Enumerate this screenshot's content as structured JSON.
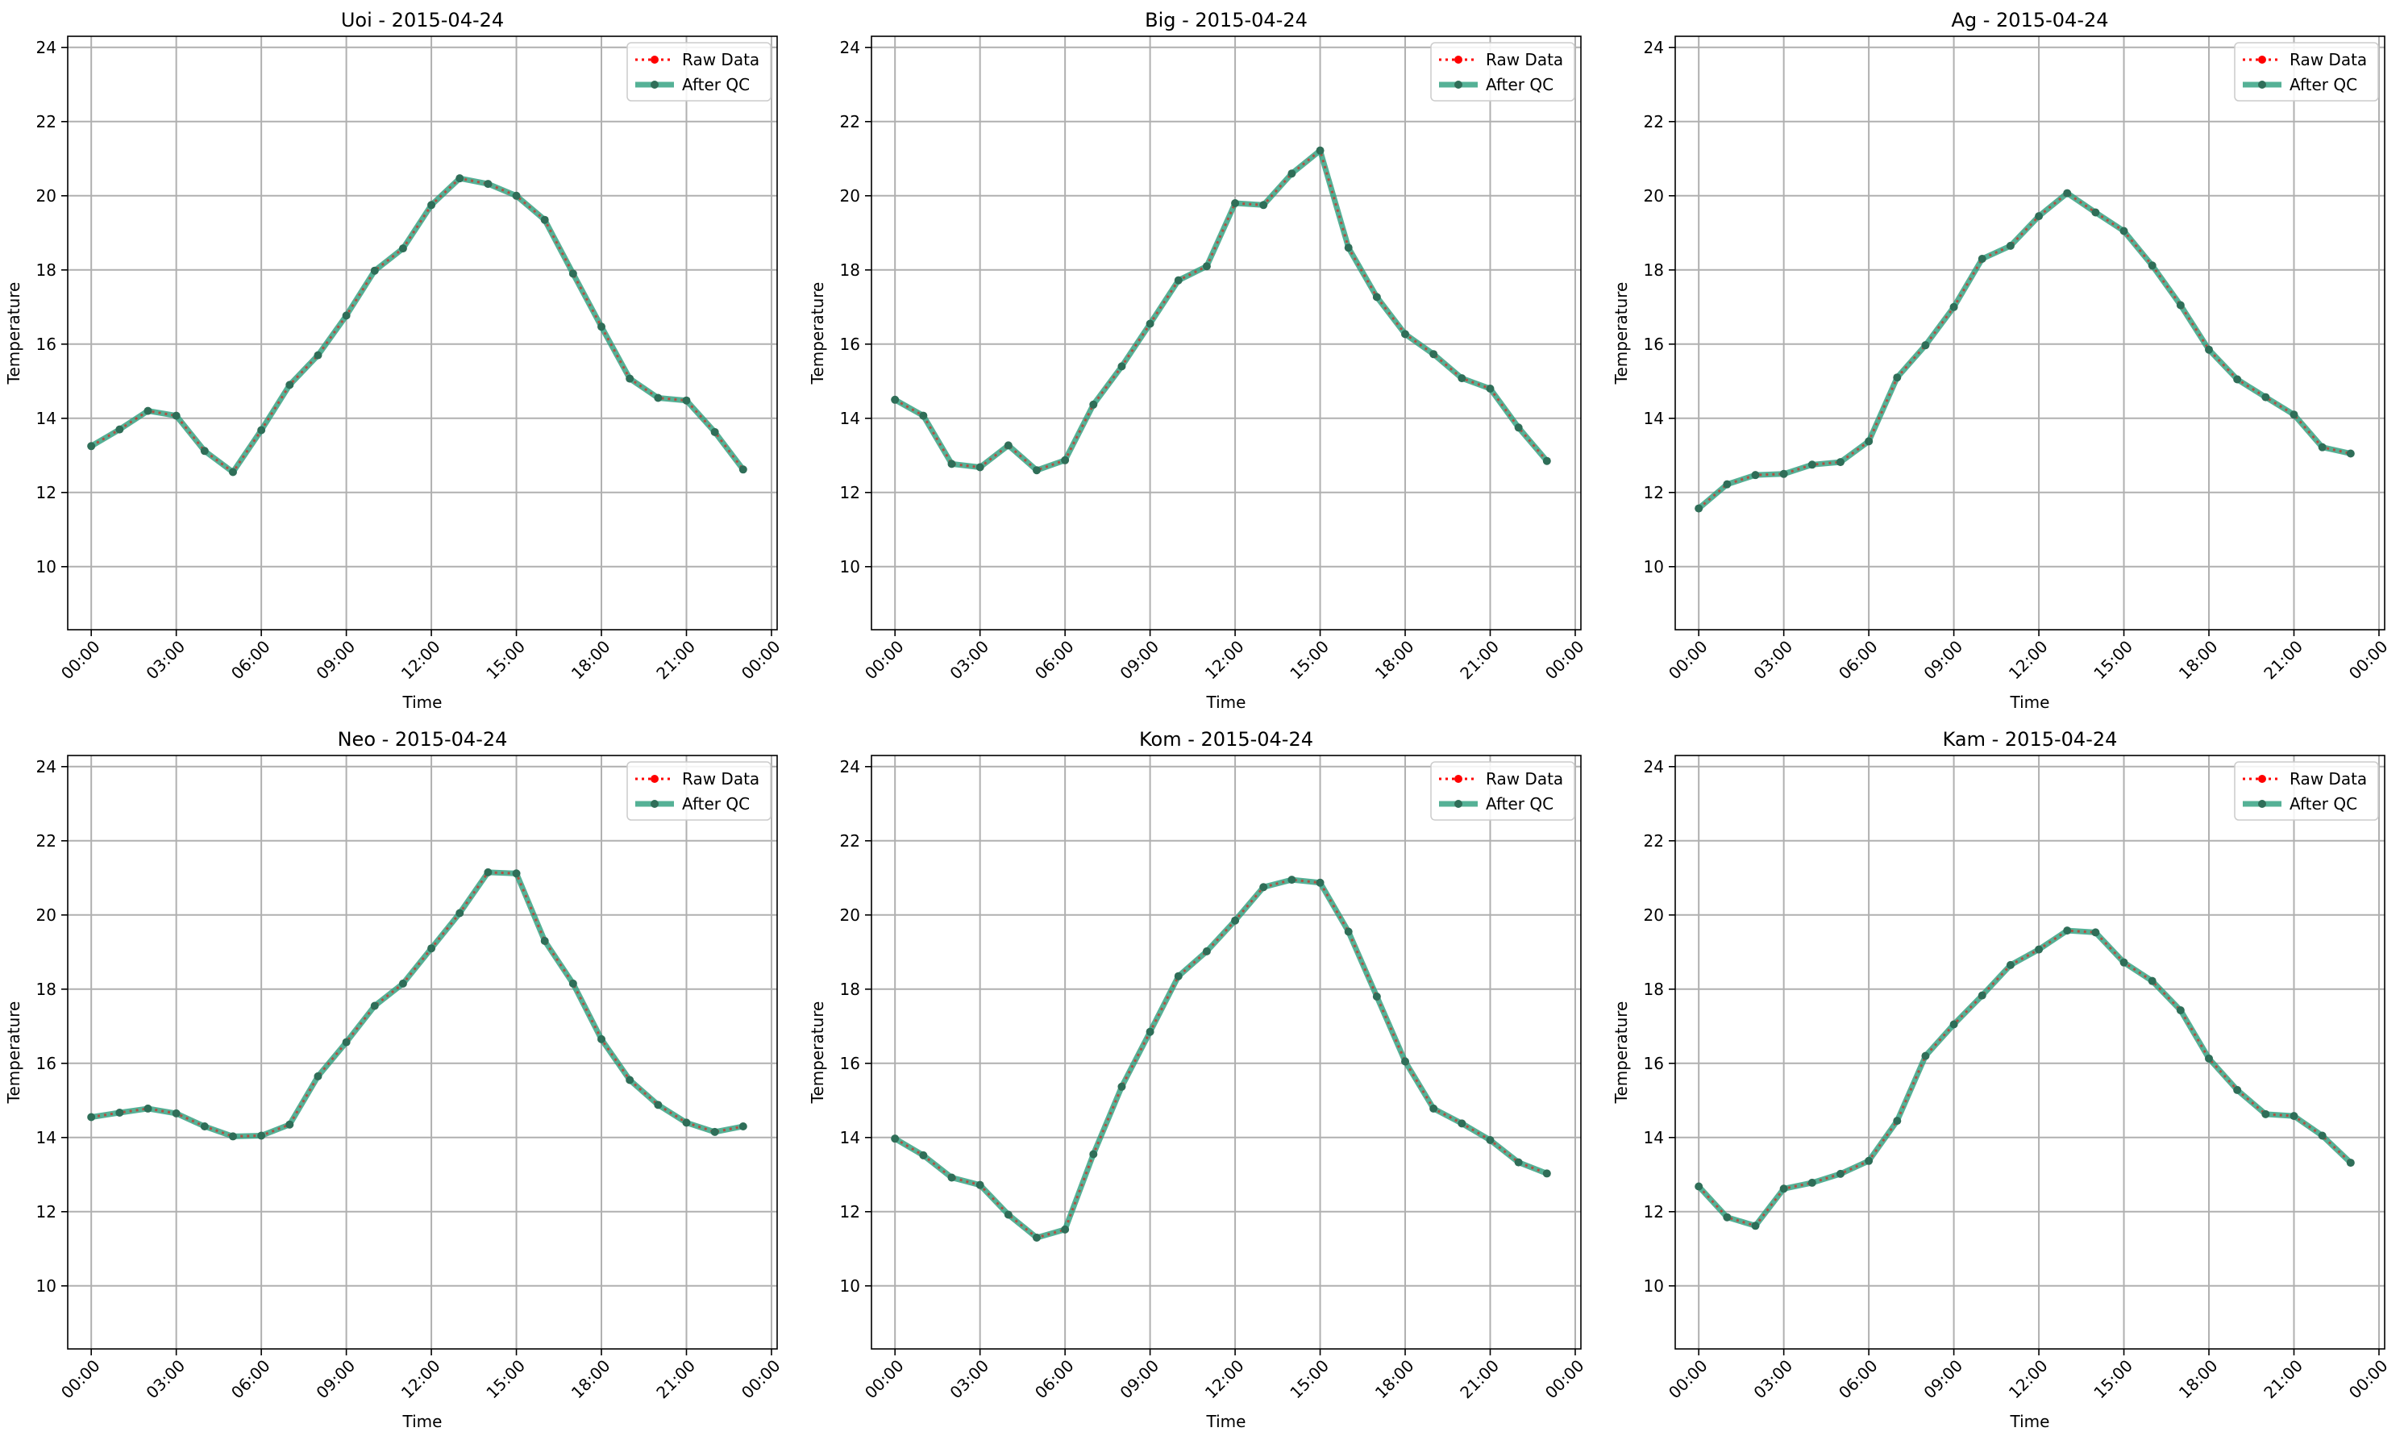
{
  "chart_data": [
    {
      "type": "line",
      "title": "Uoi - 2015-04-24",
      "xlabel": "Time",
      "ylabel": "Temperature",
      "x": [
        "00:00",
        "01:00",
        "02:00",
        "03:00",
        "04:00",
        "05:00",
        "06:00",
        "07:00",
        "08:00",
        "09:00",
        "10:00",
        "11:00",
        "12:00",
        "13:00",
        "14:00",
        "15:00",
        "16:00",
        "17:00",
        "18:00",
        "19:00",
        "20:00",
        "21:00",
        "22:00",
        "23:00"
      ],
      "xticks": [
        "00:00",
        "03:00",
        "06:00",
        "09:00",
        "12:00",
        "15:00",
        "18:00",
        "21:00",
        "00:00"
      ],
      "yticks": [
        10,
        12,
        14,
        16,
        18,
        20,
        22,
        24
      ],
      "ylim": [
        8.3,
        24.3
      ],
      "grid": true,
      "legend": "top-right",
      "series": [
        {
          "name": "Raw Data",
          "color": "#ff0000",
          "values": [
            13.25,
            13.7,
            14.2,
            14.07,
            13.12,
            12.55,
            13.68,
            14.9,
            15.7,
            16.77,
            17.98,
            18.58,
            19.75,
            20.47,
            20.32,
            20.0,
            19.35,
            17.9,
            16.47,
            15.07,
            14.55,
            14.48,
            13.63,
            12.62
          ]
        },
        {
          "name": "After QC",
          "color": "#2a9d7c",
          "values": [
            13.25,
            13.7,
            14.2,
            14.07,
            13.12,
            12.55,
            13.68,
            14.9,
            15.7,
            16.77,
            17.98,
            18.58,
            19.75,
            20.47,
            20.32,
            20.0,
            19.35,
            17.9,
            16.47,
            15.07,
            14.55,
            14.48,
            13.63,
            12.62
          ]
        }
      ]
    },
    {
      "type": "line",
      "title": "Big - 2015-04-24",
      "xlabel": "Time",
      "ylabel": "Temperature",
      "x": [
        "00:00",
        "01:00",
        "02:00",
        "03:00",
        "04:00",
        "05:00",
        "06:00",
        "07:00",
        "08:00",
        "09:00",
        "10:00",
        "11:00",
        "12:00",
        "13:00",
        "14:00",
        "15:00",
        "16:00",
        "17:00",
        "18:00",
        "19:00",
        "20:00",
        "21:00",
        "22:00",
        "23:00"
      ],
      "xticks": [
        "00:00",
        "03:00",
        "06:00",
        "09:00",
        "12:00",
        "15:00",
        "18:00",
        "21:00",
        "00:00"
      ],
      "yticks": [
        10,
        12,
        14,
        16,
        18,
        20,
        22,
        24
      ],
      "ylim": [
        8.3,
        24.3
      ],
      "grid": true,
      "legend": "top-right",
      "series": [
        {
          "name": "Raw Data",
          "color": "#ff0000",
          "values": [
            14.5,
            14.07,
            12.77,
            12.68,
            13.27,
            12.6,
            12.87,
            14.37,
            15.4,
            16.55,
            17.72,
            18.1,
            19.8,
            19.75,
            20.6,
            21.22,
            18.6,
            17.27,
            16.27,
            15.73,
            15.08,
            14.8,
            13.75,
            12.85
          ]
        },
        {
          "name": "After QC",
          "color": "#2a9d7c",
          "values": [
            14.5,
            14.07,
            12.77,
            12.68,
            13.27,
            12.6,
            12.87,
            14.37,
            15.4,
            16.55,
            17.72,
            18.1,
            19.8,
            19.75,
            20.6,
            21.22,
            18.6,
            17.27,
            16.27,
            15.73,
            15.08,
            14.8,
            13.75,
            12.85
          ]
        }
      ]
    },
    {
      "type": "line",
      "title": "Ag - 2015-04-24",
      "xlabel": "Time",
      "ylabel": "Temperature",
      "x": [
        "00:00",
        "01:00",
        "02:00",
        "03:00",
        "04:00",
        "05:00",
        "06:00",
        "07:00",
        "08:00",
        "09:00",
        "10:00",
        "11:00",
        "12:00",
        "13:00",
        "14:00",
        "15:00",
        "16:00",
        "17:00",
        "18:00",
        "19:00",
        "20:00",
        "21:00",
        "22:00",
        "23:00"
      ],
      "xticks": [
        "00:00",
        "03:00",
        "06:00",
        "09:00",
        "12:00",
        "15:00",
        "18:00",
        "21:00",
        "00:00"
      ],
      "yticks": [
        10,
        12,
        14,
        16,
        18,
        20,
        22,
        24
      ],
      "ylim": [
        8.3,
        24.3
      ],
      "grid": true,
      "legend": "top-right",
      "series": [
        {
          "name": "Raw Data",
          "color": "#ff0000",
          "values": [
            11.57,
            12.22,
            12.47,
            12.5,
            12.75,
            12.82,
            13.38,
            15.1,
            15.97,
            17.0,
            18.3,
            18.65,
            19.45,
            20.07,
            19.55,
            19.05,
            18.12,
            17.05,
            15.85,
            15.05,
            14.57,
            14.1,
            13.22,
            13.05
          ]
        },
        {
          "name": "After QC",
          "color": "#2a9d7c",
          "values": [
            11.57,
            12.22,
            12.47,
            12.5,
            12.75,
            12.82,
            13.38,
            15.1,
            15.97,
            17.0,
            18.3,
            18.65,
            19.45,
            20.07,
            19.55,
            19.05,
            18.12,
            17.05,
            15.85,
            15.05,
            14.57,
            14.1,
            13.22,
            13.05
          ]
        }
      ]
    },
    {
      "type": "line",
      "title": "Neo - 2015-04-24",
      "xlabel": "Time",
      "ylabel": "Temperature",
      "x": [
        "00:00",
        "01:00",
        "02:00",
        "03:00",
        "04:00",
        "05:00",
        "06:00",
        "07:00",
        "08:00",
        "09:00",
        "10:00",
        "11:00",
        "12:00",
        "13:00",
        "14:00",
        "15:00",
        "16:00",
        "17:00",
        "18:00",
        "19:00",
        "20:00",
        "21:00",
        "22:00",
        "23:00"
      ],
      "xticks": [
        "00:00",
        "03:00",
        "06:00",
        "09:00",
        "12:00",
        "15:00",
        "18:00",
        "21:00",
        "00:00"
      ],
      "yticks": [
        10,
        12,
        14,
        16,
        18,
        20,
        22,
        24
      ],
      "ylim": [
        8.3,
        24.3
      ],
      "grid": true,
      "legend": "top-right",
      "series": [
        {
          "name": "Raw Data",
          "color": "#ff0000",
          "values": [
            14.55,
            14.67,
            14.78,
            14.65,
            14.3,
            14.03,
            14.05,
            14.35,
            15.65,
            16.57,
            17.55,
            18.15,
            19.1,
            20.05,
            21.15,
            21.12,
            19.3,
            18.15,
            16.65,
            15.55,
            14.88,
            14.4,
            14.15,
            14.3
          ]
        },
        {
          "name": "After QC",
          "color": "#2a9d7c",
          "values": [
            14.55,
            14.67,
            14.78,
            14.65,
            14.3,
            14.03,
            14.05,
            14.35,
            15.65,
            16.57,
            17.55,
            18.15,
            19.1,
            20.05,
            21.15,
            21.12,
            19.3,
            18.15,
            16.65,
            15.55,
            14.88,
            14.4,
            14.15,
            14.3
          ]
        }
      ]
    },
    {
      "type": "line",
      "title": "Kom - 2015-04-24",
      "xlabel": "Time",
      "ylabel": "Temperature",
      "x": [
        "00:00",
        "01:00",
        "02:00",
        "03:00",
        "04:00",
        "05:00",
        "06:00",
        "07:00",
        "08:00",
        "09:00",
        "10:00",
        "11:00",
        "12:00",
        "13:00",
        "14:00",
        "15:00",
        "16:00",
        "17:00",
        "18:00",
        "19:00",
        "20:00",
        "21:00",
        "22:00",
        "23:00"
      ],
      "xticks": [
        "00:00",
        "03:00",
        "06:00",
        "09:00",
        "12:00",
        "15:00",
        "18:00",
        "21:00",
        "00:00"
      ],
      "yticks": [
        10,
        12,
        14,
        16,
        18,
        20,
        22,
        24
      ],
      "ylim": [
        8.3,
        24.3
      ],
      "grid": true,
      "legend": "top-right",
      "series": [
        {
          "name": "Raw Data",
          "color": "#ff0000",
          "values": [
            13.97,
            13.52,
            12.92,
            12.72,
            11.92,
            11.3,
            11.52,
            13.55,
            15.37,
            16.85,
            18.35,
            19.02,
            19.85,
            20.75,
            20.95,
            20.87,
            19.55,
            17.8,
            16.05,
            14.78,
            14.38,
            13.93,
            13.33,
            13.03
          ]
        },
        {
          "name": "After QC",
          "color": "#2a9d7c",
          "values": [
            13.97,
            13.52,
            12.92,
            12.72,
            11.92,
            11.3,
            11.52,
            13.55,
            15.37,
            16.85,
            18.35,
            19.02,
            19.85,
            20.75,
            20.95,
            20.87,
            19.55,
            17.8,
            16.05,
            14.78,
            14.38,
            13.93,
            13.33,
            13.03
          ]
        }
      ]
    },
    {
      "type": "line",
      "title": "Kam - 2015-04-24",
      "xlabel": "Time",
      "ylabel": "Temperature",
      "x": [
        "00:00",
        "01:00",
        "02:00",
        "03:00",
        "04:00",
        "05:00",
        "06:00",
        "07:00",
        "08:00",
        "09:00",
        "10:00",
        "11:00",
        "12:00",
        "13:00",
        "14:00",
        "15:00",
        "16:00",
        "17:00",
        "18:00",
        "19:00",
        "20:00",
        "21:00",
        "22:00",
        "23:00"
      ],
      "xticks": [
        "00:00",
        "03:00",
        "06:00",
        "09:00",
        "12:00",
        "15:00",
        "18:00",
        "21:00",
        "00:00"
      ],
      "yticks": [
        10,
        12,
        14,
        16,
        18,
        20,
        22,
        24
      ],
      "ylim": [
        8.3,
        24.3
      ],
      "grid": true,
      "legend": "top-right",
      "series": [
        {
          "name": "Raw Data",
          "color": "#ff0000",
          "values": [
            12.68,
            11.85,
            11.62,
            12.62,
            12.78,
            13.02,
            13.37,
            14.45,
            16.2,
            17.05,
            17.83,
            18.65,
            19.07,
            19.58,
            19.53,
            18.72,
            18.22,
            17.43,
            16.13,
            15.28,
            14.63,
            14.58,
            14.05,
            13.32
          ]
        },
        {
          "name": "After QC",
          "color": "#2a9d7c",
          "values": [
            12.68,
            11.85,
            11.62,
            12.62,
            12.78,
            13.02,
            13.37,
            14.45,
            16.2,
            17.05,
            17.83,
            18.65,
            19.07,
            19.58,
            19.53,
            18.72,
            18.22,
            17.43,
            16.13,
            15.28,
            14.63,
            14.58,
            14.05,
            13.32
          ]
        }
      ]
    }
  ]
}
